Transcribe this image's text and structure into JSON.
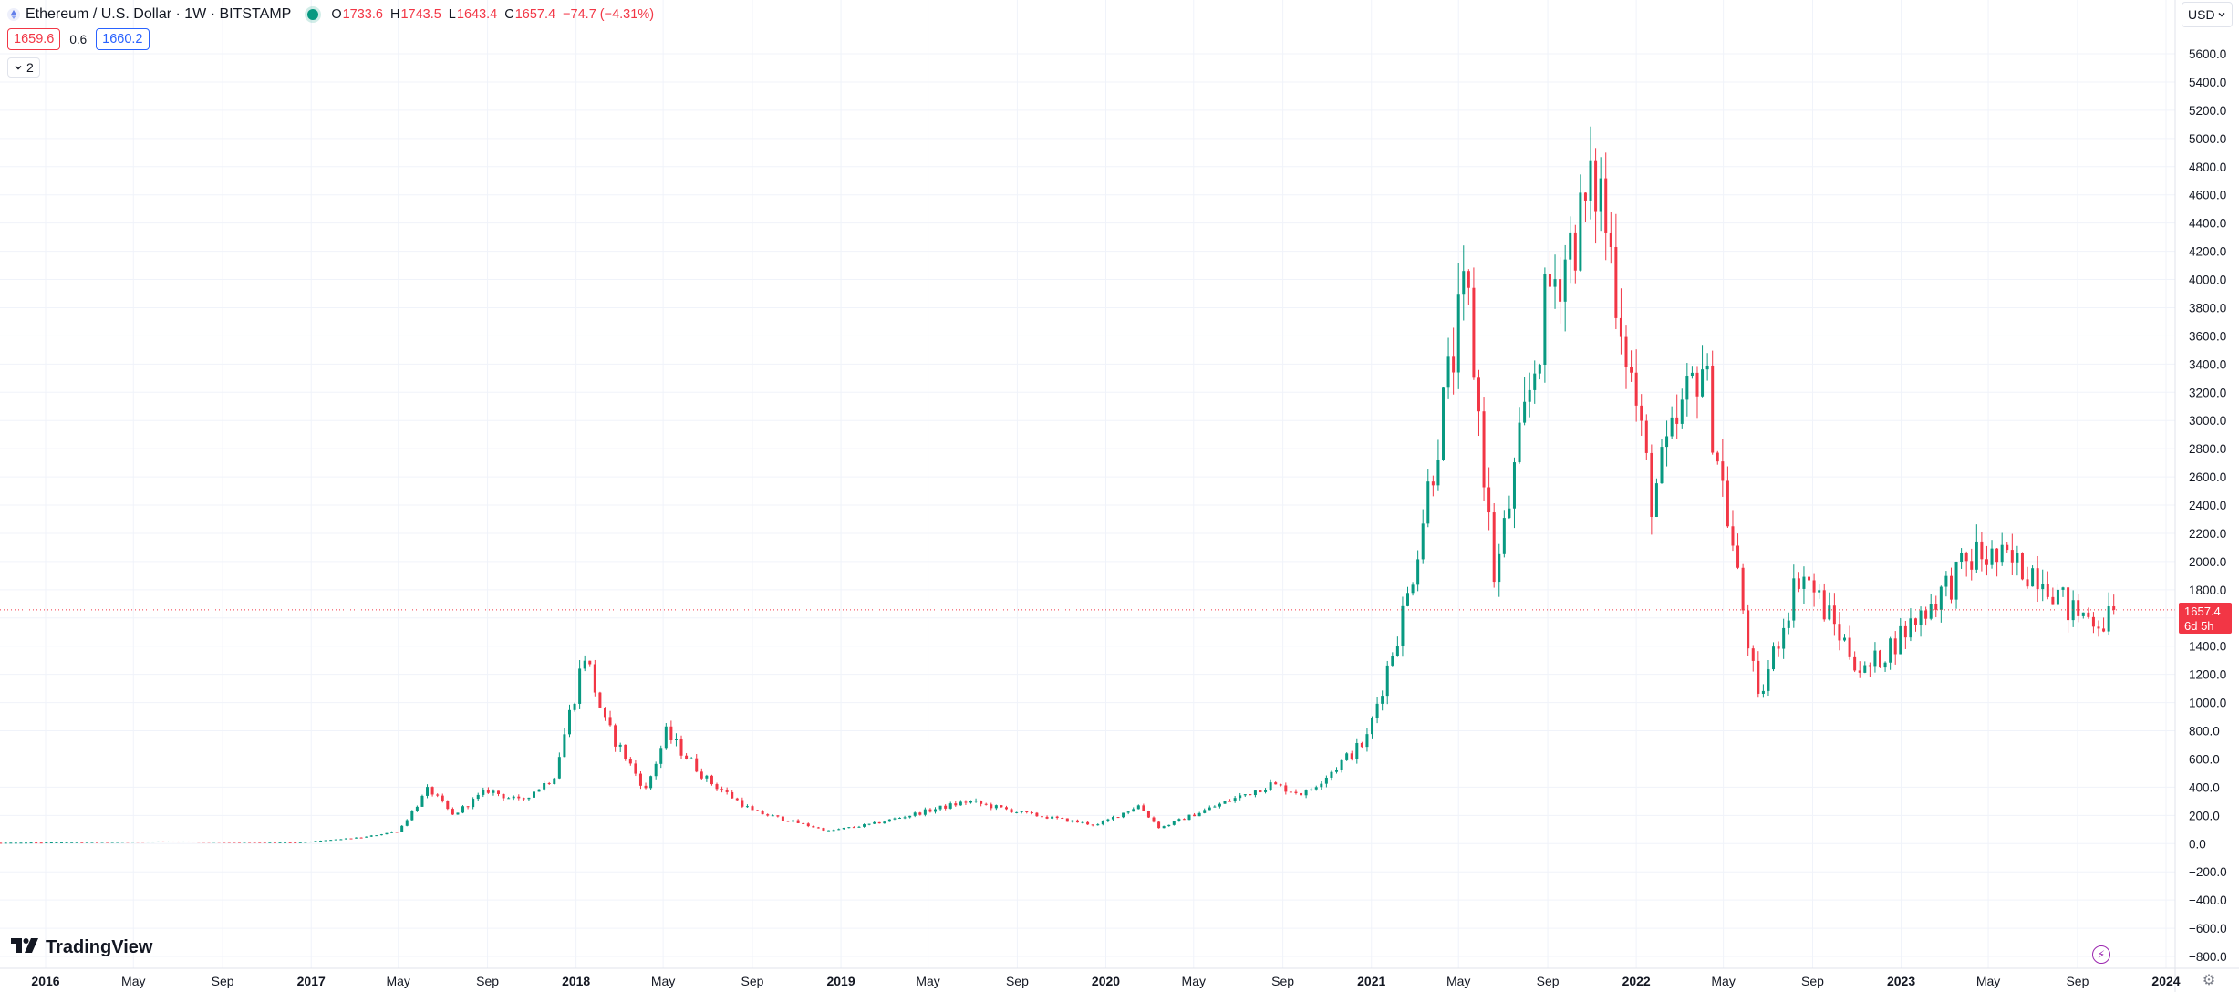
{
  "header": {
    "symbol_title": "Ethereum / U.S. Dollar · 1W · BITSTAMP",
    "ohlc": [
      {
        "key": "O",
        "value": "1733.6"
      },
      {
        "key": "H",
        "value": "1743.5"
      },
      {
        "key": "L",
        "value": "1643.4"
      },
      {
        "key": "C",
        "value": "1657.4"
      }
    ],
    "change": "−74.7 (−4.31%)",
    "sell_price": "1659.6",
    "spread": "0.6",
    "buy_price": "1660.2",
    "collapse_count": "2",
    "currency": "USD"
  },
  "footer": {
    "logo_text": "TradingView",
    "lightning_icon": "lightning-icon",
    "gear_icon": "gear-icon"
  },
  "last_price": {
    "value": "1657.4",
    "countdown": "6d 5h"
  },
  "colors": {
    "up": "#089981",
    "down": "#f23645",
    "grid": "#f0f3fa",
    "axis_text": "#131722"
  },
  "chart_data": {
    "type": "candlestick",
    "y_range": [
      -880,
      5900
    ],
    "y_ticks": [
      "5600.0",
      "5400.0",
      "5200.0",
      "5000.0",
      "4800.0",
      "4600.0",
      "4400.0",
      "4200.0",
      "4000.0",
      "3800.0",
      "3600.0",
      "3400.0",
      "3200.0",
      "3000.0",
      "2800.0",
      "2600.0",
      "2400.0",
      "2200.0",
      "2000.0",
      "1800.0",
      "1600.0",
      "1400.0",
      "1200.0",
      "1000.0",
      "800.0",
      "600.0",
      "400.0",
      "200.0",
      "0.0",
      "−200.0",
      "−400.0",
      "−600.0",
      "−800.0"
    ],
    "x_ticks": [
      {
        "label": "2016",
        "date": "2016-01-01",
        "bold": true
      },
      {
        "label": "May",
        "date": "2016-05-01",
        "bold": false
      },
      {
        "label": "Sep",
        "date": "2016-09-01",
        "bold": false
      },
      {
        "label": "2017",
        "date": "2017-01-01",
        "bold": true
      },
      {
        "label": "May",
        "date": "2017-05-01",
        "bold": false
      },
      {
        "label": "Sep",
        "date": "2017-09-01",
        "bold": false
      },
      {
        "label": "2018",
        "date": "2018-01-01",
        "bold": true
      },
      {
        "label": "May",
        "date": "2018-05-01",
        "bold": false
      },
      {
        "label": "Sep",
        "date": "2018-09-01",
        "bold": false
      },
      {
        "label": "2019",
        "date": "2019-01-01",
        "bold": true
      },
      {
        "label": "May",
        "date": "2019-05-01",
        "bold": false
      },
      {
        "label": "Sep",
        "date": "2019-09-01",
        "bold": false
      },
      {
        "label": "2020",
        "date": "2020-01-01",
        "bold": true
      },
      {
        "label": "May",
        "date": "2020-05-01",
        "bold": false
      },
      {
        "label": "Sep",
        "date": "2020-09-01",
        "bold": false
      },
      {
        "label": "2021",
        "date": "2021-01-01",
        "bold": true
      },
      {
        "label": "May",
        "date": "2021-05-01",
        "bold": false
      },
      {
        "label": "Sep",
        "date": "2021-09-01",
        "bold": false
      },
      {
        "label": "2022",
        "date": "2022-01-01",
        "bold": true
      },
      {
        "label": "May",
        "date": "2022-05-01",
        "bold": false
      },
      {
        "label": "Sep",
        "date": "2022-09-01",
        "bold": false
      },
      {
        "label": "2023",
        "date": "2023-01-01",
        "bold": true
      },
      {
        "label": "May",
        "date": "2023-05-01",
        "bold": false
      },
      {
        "label": "Sep",
        "date": "2023-09-01",
        "bold": false
      },
      {
        "label": "2024",
        "date": "2024-01-01",
        "bold": true
      }
    ],
    "close_path": [
      {
        "date": "2015-08-01",
        "close": 2
      },
      {
        "date": "2016-03-01",
        "close": 10
      },
      {
        "date": "2016-06-15",
        "close": 15
      },
      {
        "date": "2016-12-15",
        "close": 8
      },
      {
        "date": "2017-03-15",
        "close": 45
      },
      {
        "date": "2017-05-01",
        "close": 90
      },
      {
        "date": "2017-06-12",
        "close": 390
      },
      {
        "date": "2017-07-15",
        "close": 200
      },
      {
        "date": "2017-09-01",
        "close": 380
      },
      {
        "date": "2017-10-15",
        "close": 300
      },
      {
        "date": "2017-12-01",
        "close": 470
      },
      {
        "date": "2018-01-13",
        "close": 1350
      },
      {
        "date": "2018-02-10",
        "close": 850
      },
      {
        "date": "2018-04-07",
        "close": 380
      },
      {
        "date": "2018-05-05",
        "close": 780
      },
      {
        "date": "2018-07-01",
        "close": 450
      },
      {
        "date": "2018-09-01",
        "close": 230
      },
      {
        "date": "2018-12-15",
        "close": 90
      },
      {
        "date": "2019-02-15",
        "close": 140
      },
      {
        "date": "2019-06-25",
        "close": 300
      },
      {
        "date": "2019-09-15",
        "close": 210
      },
      {
        "date": "2019-12-20",
        "close": 130
      },
      {
        "date": "2020-02-15",
        "close": 270
      },
      {
        "date": "2020-03-15",
        "close": 110
      },
      {
        "date": "2020-08-15",
        "close": 420
      },
      {
        "date": "2020-10-01",
        "close": 350
      },
      {
        "date": "2020-12-25",
        "close": 730
      },
      {
        "date": "2021-02-20",
        "close": 1750
      },
      {
        "date": "2021-05-12",
        "close": 3950
      },
      {
        "date": "2021-06-20",
        "close": 1850
      },
      {
        "date": "2021-09-01",
        "close": 3900
      },
      {
        "date": "2021-11-10",
        "close": 4700
      },
      {
        "date": "2022-01-22",
        "close": 2450
      },
      {
        "date": "2022-04-01",
        "close": 3450
      },
      {
        "date": "2022-06-18",
        "close": 1000
      },
      {
        "date": "2022-08-15",
        "close": 1950
      },
      {
        "date": "2022-11-10",
        "close": 1200
      },
      {
        "date": "2023-04-15",
        "close": 2050
      },
      {
        "date": "2023-07-15",
        "close": 1920
      },
      {
        "date": "2023-08-20",
        "close": 1650
      },
      {
        "date": "2023-10-10",
        "close": 1580
      },
      {
        "date": "2023-10-22",
        "close": 1657.4
      }
    ]
  }
}
